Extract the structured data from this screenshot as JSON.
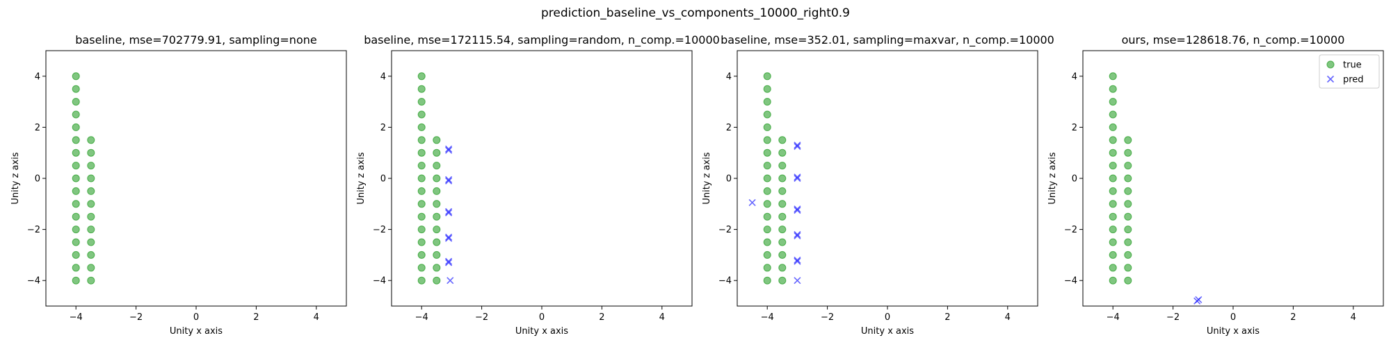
{
  "figure_title": "prediction_baseline_vs_components_10000_right0.9",
  "colors": {
    "true": "#2ca02c",
    "pred": "#0000ff"
  },
  "chart_data": [
    {
      "type": "scatter",
      "title": "baseline, mse=702779.91, sampling=none",
      "xlabel": "Unity x axis",
      "ylabel": "Unity z axis",
      "xlim": [
        -5,
        5
      ],
      "ylim": [
        -5,
        5
      ],
      "xticks": [
        -4,
        -2,
        0,
        2,
        4
      ],
      "yticks": [
        -4,
        -2,
        0,
        2,
        4
      ],
      "legend": null,
      "series": [
        {
          "name": "true",
          "marker": "circle",
          "points": [
            [
              -4,
              4
            ],
            [
              -4,
              3.5
            ],
            [
              -4,
              3
            ],
            [
              -4,
              2.5
            ],
            [
              -4,
              2
            ],
            [
              -4,
              1.5
            ],
            [
              -4,
              1
            ],
            [
              -4,
              0.5
            ],
            [
              -4,
              0
            ],
            [
              -4,
              -0.5
            ],
            [
              -4,
              -1
            ],
            [
              -4,
              -1.5
            ],
            [
              -4,
              -2
            ],
            [
              -4,
              -2.5
            ],
            [
              -4,
              -3
            ],
            [
              -4,
              -3.5
            ],
            [
              -4,
              -4
            ],
            [
              -3.5,
              1.5
            ],
            [
              -3.5,
              1
            ],
            [
              -3.5,
              0.5
            ],
            [
              -3.5,
              0
            ],
            [
              -3.5,
              -0.5
            ],
            [
              -3.5,
              -1
            ],
            [
              -3.5,
              -1.5
            ],
            [
              -3.5,
              -2
            ],
            [
              -3.5,
              -2.5
            ],
            [
              -3.5,
              -3
            ],
            [
              -3.5,
              -3.5
            ],
            [
              -3.5,
              -4
            ]
          ]
        },
        {
          "name": "pred",
          "marker": "x",
          "points": []
        }
      ]
    },
    {
      "type": "scatter",
      "title": "baseline, mse=172115.54, sampling=random, n_comp.=10000",
      "xlabel": "Unity x axis",
      "ylabel": "Unity z axis",
      "xlim": [
        -5,
        5
      ],
      "ylim": [
        -5,
        5
      ],
      "xticks": [
        -4,
        -2,
        0,
        2,
        4
      ],
      "yticks": [
        -4,
        -2,
        0,
        2,
        4
      ],
      "legend": null,
      "series": [
        {
          "name": "true",
          "marker": "circle",
          "points": [
            [
              -4,
              4
            ],
            [
              -4,
              3.5
            ],
            [
              -4,
              3
            ],
            [
              -4,
              2.5
            ],
            [
              -4,
              2
            ],
            [
              -4,
              1.5
            ],
            [
              -4,
              1
            ],
            [
              -4,
              0.5
            ],
            [
              -4,
              0
            ],
            [
              -4,
              -0.5
            ],
            [
              -4,
              -1
            ],
            [
              -4,
              -1.5
            ],
            [
              -4,
              -2
            ],
            [
              -4,
              -2.5
            ],
            [
              -4,
              -3
            ],
            [
              -4,
              -3.5
            ],
            [
              -4,
              -4
            ],
            [
              -3.5,
              1.5
            ],
            [
              -3.5,
              1
            ],
            [
              -3.5,
              0.5
            ],
            [
              -3.5,
              0
            ],
            [
              -3.5,
              -0.5
            ],
            [
              -3.5,
              -1
            ],
            [
              -3.5,
              -1.5
            ],
            [
              -3.5,
              -2
            ],
            [
              -3.5,
              -2.5
            ],
            [
              -3.5,
              -3
            ],
            [
              -3.5,
              -3.5
            ],
            [
              -3.5,
              -4
            ]
          ]
        },
        {
          "name": "pred",
          "marker": "x",
          "points": [
            [
              -3.1,
              1.15
            ],
            [
              -3.1,
              1.1
            ],
            [
              -3.1,
              -0.05
            ],
            [
              -3.1,
              -0.1
            ],
            [
              -3.1,
              -1.35
            ],
            [
              -3.1,
              -1.3
            ],
            [
              -3.1,
              -2.35
            ],
            [
              -3.1,
              -2.3
            ],
            [
              -3.1,
              -3.3
            ],
            [
              -3.1,
              -3.25
            ],
            [
              -3.05,
              -4
            ]
          ]
        }
      ]
    },
    {
      "type": "scatter",
      "title": "baseline, mse=352.01, sampling=maxvar, n_comp.=10000",
      "xlabel": "Unity x axis",
      "ylabel": "Unity z axis",
      "xlim": [
        -5,
        5
      ],
      "ylim": [
        -5,
        5
      ],
      "xticks": [
        -4,
        -2,
        0,
        2,
        4
      ],
      "yticks": [
        -4,
        -2,
        0,
        2,
        4
      ],
      "legend": null,
      "series": [
        {
          "name": "true",
          "marker": "circle",
          "points": [
            [
              -4,
              4
            ],
            [
              -4,
              3.5
            ],
            [
              -4,
              3
            ],
            [
              -4,
              2.5
            ],
            [
              -4,
              2
            ],
            [
              -4,
              1.5
            ],
            [
              -4,
              1
            ],
            [
              -4,
              0.5
            ],
            [
              -4,
              0
            ],
            [
              -4,
              -0.5
            ],
            [
              -4,
              -1
            ],
            [
              -4,
              -1.5
            ],
            [
              -4,
              -2
            ],
            [
              -4,
              -2.5
            ],
            [
              -4,
              -3
            ],
            [
              -4,
              -3.5
            ],
            [
              -4,
              -4
            ],
            [
              -3.5,
              1.5
            ],
            [
              -3.5,
              1
            ],
            [
              -3.5,
              0.5
            ],
            [
              -3.5,
              0
            ],
            [
              -3.5,
              -0.5
            ],
            [
              -3.5,
              -1
            ],
            [
              -3.5,
              -1.5
            ],
            [
              -3.5,
              -2
            ],
            [
              -3.5,
              -2.5
            ],
            [
              -3.5,
              -3
            ],
            [
              -3.5,
              -3.5
            ],
            [
              -3.5,
              -4
            ]
          ]
        },
        {
          "name": "pred",
          "marker": "x",
          "points": [
            [
              -4.5,
              -0.95
            ],
            [
              -3,
              1.3
            ],
            [
              -3,
              1.25
            ],
            [
              -3,
              0
            ],
            [
              -3,
              0.05
            ],
            [
              -3,
              -1.25
            ],
            [
              -3,
              -1.2
            ],
            [
              -3,
              -2.25
            ],
            [
              -3,
              -2.2
            ],
            [
              -3,
              -3.25
            ],
            [
              -3,
              -3.2
            ],
            [
              -3,
              -4
            ]
          ]
        }
      ]
    },
    {
      "type": "scatter",
      "title": "ours, mse=128618.76, n_comp.=10000",
      "xlabel": "Unity x axis",
      "ylabel": "Unity z axis",
      "xlim": [
        -5,
        5
      ],
      "ylim": [
        -5,
        5
      ],
      "xticks": [
        -4,
        -2,
        0,
        2,
        4
      ],
      "yticks": [
        -4,
        -2,
        0,
        2,
        4
      ],
      "legend": "upper right",
      "series": [
        {
          "name": "true",
          "marker": "circle",
          "points": [
            [
              -4,
              4
            ],
            [
              -4,
              3.5
            ],
            [
              -4,
              3
            ],
            [
              -4,
              2.5
            ],
            [
              -4,
              2
            ],
            [
              -4,
              1.5
            ],
            [
              -4,
              1
            ],
            [
              -4,
              0.5
            ],
            [
              -4,
              0
            ],
            [
              -4,
              -0.5
            ],
            [
              -4,
              -1
            ],
            [
              -4,
              -1.5
            ],
            [
              -4,
              -2
            ],
            [
              -4,
              -2.5
            ],
            [
              -4,
              -3
            ],
            [
              -4,
              -3.5
            ],
            [
              -4,
              -4
            ],
            [
              -3.5,
              1.5
            ],
            [
              -3.5,
              1
            ],
            [
              -3.5,
              0.5
            ],
            [
              -3.5,
              0
            ],
            [
              -3.5,
              -0.5
            ],
            [
              -3.5,
              -1
            ],
            [
              -3.5,
              -1.5
            ],
            [
              -3.5,
              -2
            ],
            [
              -3.5,
              -2.5
            ],
            [
              -3.5,
              -3
            ],
            [
              -3.5,
              -3.5
            ],
            [
              -3.5,
              -4
            ]
          ]
        },
        {
          "name": "pred",
          "marker": "x",
          "points": [
            [
              -1.2,
              -4.8
            ],
            [
              -1.15,
              -4.75
            ]
          ]
        }
      ]
    }
  ]
}
